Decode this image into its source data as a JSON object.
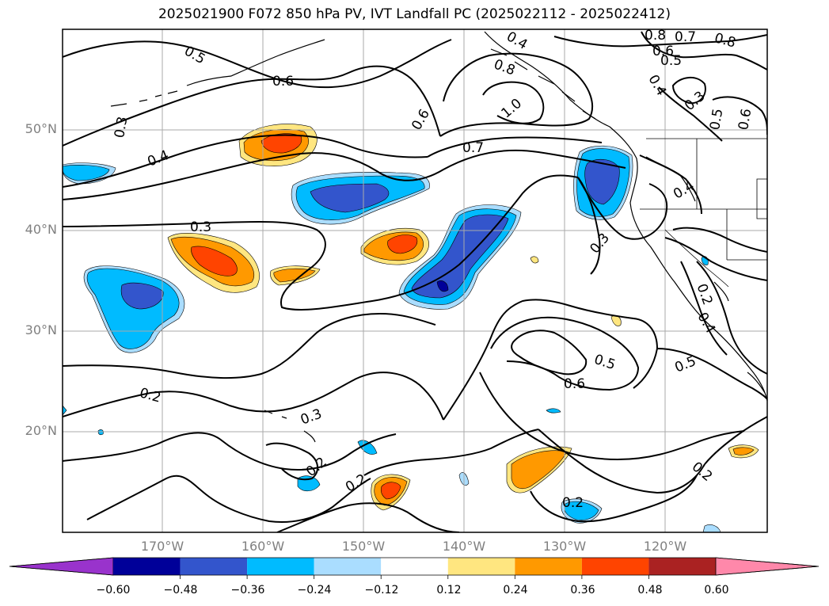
{
  "title": "2025021900 F072 850 hPa PV, IVT Landfall PC (2025022112 - 2025022412)",
  "lat_labels": [
    "50°N",
    "40°N",
    "30°N",
    "20°N"
  ],
  "lon_labels": [
    "170°W",
    "160°W",
    "150°W",
    "140°W",
    "130°W",
    "120°W"
  ],
  "colorbar": {
    "ticks": [
      "−0.60",
      "−0.48",
      "−0.36",
      "−0.24",
      "−0.12",
      "0.12",
      "0.24",
      "0.36",
      "0.48",
      "0.60"
    ],
    "colors": [
      "#9933cc",
      "#000099",
      "#3355cc",
      "#00bbff",
      "#aaddff",
      "#ffffff",
      "#ffe680",
      "#ff9900",
      "#ff4400",
      "#aa2222",
      "#ff88aa"
    ]
  },
  "contour_labels": [
    {
      "text": "0.5"
    },
    {
      "text": "0.6"
    },
    {
      "text": "0.3"
    },
    {
      "text": "0.4"
    },
    {
      "text": "0.3"
    },
    {
      "text": "0.6"
    },
    {
      "text": "0.7"
    },
    {
      "text": "0.8"
    },
    {
      "text": "1.0"
    },
    {
      "text": "0.4"
    },
    {
      "text": "0.8"
    },
    {
      "text": "0.7"
    },
    {
      "text": "0.6"
    },
    {
      "text": "0.5"
    },
    {
      "text": "0.8"
    },
    {
      "text": "0.4"
    },
    {
      "text": "0.3"
    },
    {
      "text": "0.5"
    },
    {
      "text": "0.6"
    },
    {
      "text": "0.4"
    },
    {
      "text": "0.3"
    },
    {
      "text": "0.5"
    },
    {
      "text": "0.6"
    },
    {
      "text": "0.5"
    },
    {
      "text": "0.2"
    },
    {
      "text": "0.4"
    },
    {
      "text": "0.2"
    },
    {
      "text": "0.3"
    },
    {
      "text": "0.2"
    },
    {
      "text": "0.2"
    },
    {
      "text": "0.2"
    },
    {
      "text": "0.2"
    }
  ]
}
